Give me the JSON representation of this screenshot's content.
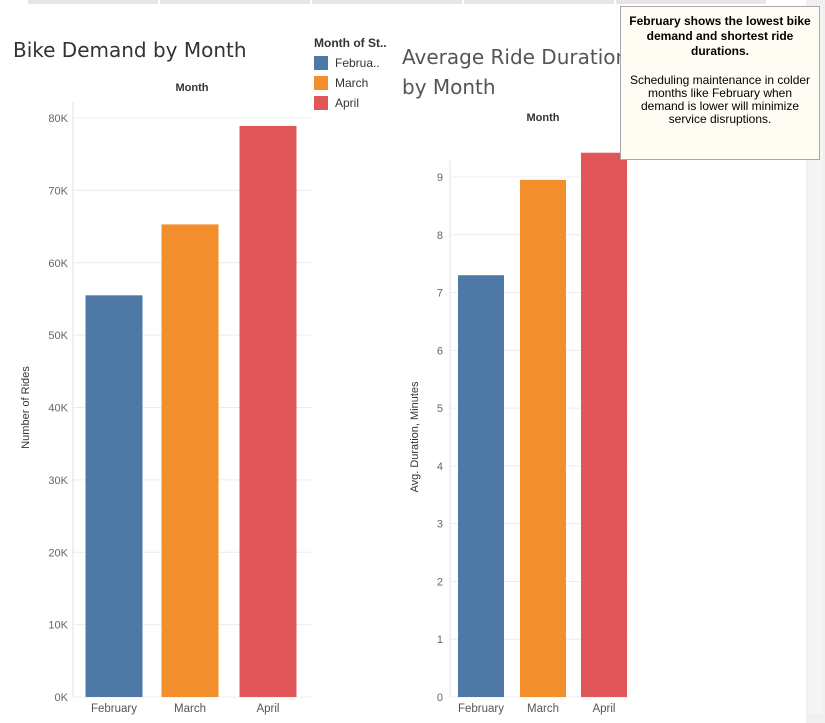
{
  "charts": {
    "rides": {
      "title": "Bike Demand by Month"
    },
    "duration": {
      "title": "Average Ride Duration by Month"
    }
  },
  "legend": {
    "title": "Month of St..",
    "items": [
      {
        "label": "Februa..",
        "color": "#4e79a7"
      },
      {
        "label": "March",
        "color": "#f28e2b"
      },
      {
        "label": "April",
        "color": "#e15759"
      }
    ]
  },
  "callout": {
    "headline": "February shows the lowest bike demand and shortest ride durations.",
    "body": "Scheduling maintenance in colder months like February when demand is lower will minimize service disruptions."
  },
  "chart_data": [
    {
      "type": "bar",
      "title": "Bike Demand by Month",
      "header": "Month",
      "categories": [
        "February",
        "March",
        "April"
      ],
      "values": [
        55500,
        65300,
        78900
      ],
      "colors": [
        "#4e79a7",
        "#f28e2b",
        "#e15759"
      ],
      "ylabel": "Number of Rides",
      "ylim": [
        0,
        80000
      ],
      "yticks": [
        0,
        10000,
        20000,
        30000,
        40000,
        50000,
        60000,
        70000,
        80000
      ],
      "ytick_labels": [
        "0K",
        "10K",
        "20K",
        "30K",
        "40K",
        "50K",
        "60K",
        "70K",
        "80K"
      ],
      "grid": true
    },
    {
      "type": "bar",
      "title": "Average Ride Duration by Month",
      "header": "Month",
      "categories": [
        "February",
        "March",
        "April"
      ],
      "values": [
        7.3,
        8.95,
        9.42
      ],
      "colors": [
        "#4e79a7",
        "#f28e2b",
        "#e15759"
      ],
      "ylabel": "Avg. Duration, Minutes",
      "ylim": [
        0,
        9
      ],
      "yticks": [
        0,
        1,
        2,
        3,
        4,
        5,
        6,
        7,
        8,
        9
      ],
      "ytick_labels": [
        "0",
        "1",
        "2",
        "3",
        "4",
        "5",
        "6",
        "7",
        "8",
        "9"
      ],
      "grid": true
    }
  ]
}
